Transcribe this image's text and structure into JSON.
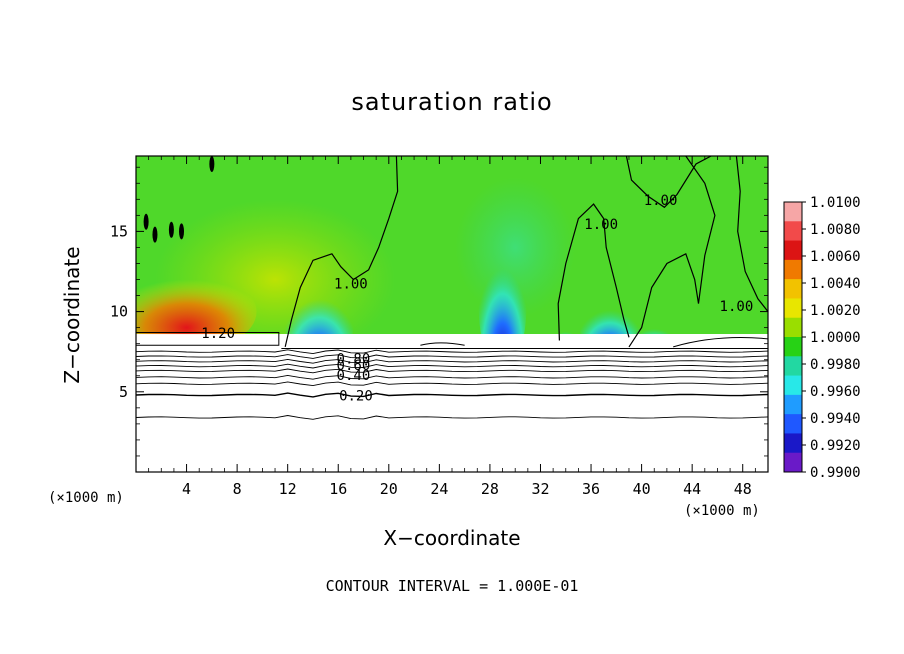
{
  "chart_data": {
    "type": "heatmap",
    "title": "saturation ratio",
    "xlabel": "X−coordinate",
    "ylabel": "Z−coordinate",
    "x_unit": "(×1000 m)",
    "xlim": [
      0,
      50
    ],
    "ylim": [
      0,
      19.7
    ],
    "x_ticks": [
      4,
      8,
      12,
      16,
      20,
      24,
      28,
      32,
      36,
      40,
      44,
      48
    ],
    "y_ticks": [
      5,
      10,
      15
    ],
    "colorbar": {
      "min": 0.99,
      "max": 1.01,
      "levels": [
        "1.0100",
        "1.0080",
        "1.0060",
        "1.0040",
        "1.0020",
        "1.0000",
        "0.9980",
        "0.9960",
        "0.9940",
        "0.9920",
        "0.9900"
      ],
      "colors": [
        "#f6a6a6",
        "#f24a4a",
        "#dc1414",
        "#f07a00",
        "#f2c200",
        "#e8e600",
        "#9ade00",
        "#27d215",
        "#22d8a2",
        "#28e8e8",
        "#1f9cff",
        "#1f58ff",
        "#1a18c8",
        "#6a1ac8"
      ]
    },
    "contour_labels": [
      {
        "text": "1.20",
        "x": 6.5,
        "z": 8.6
      },
      {
        "text": "0.80",
        "x": 17.2,
        "z": 7.0
      },
      {
        "text": "0.60",
        "x": 17.2,
        "z": 6.6
      },
      {
        "text": "0.40",
        "x": 17.2,
        "z": 6.0
      },
      {
        "text": "0.20",
        "x": 17.4,
        "z": 4.7
      },
      {
        "text": "1.00",
        "x": 17.0,
        "z": 11.7
      },
      {
        "text": "1.00",
        "x": 36.8,
        "z": 15.4
      },
      {
        "text": "1.00",
        "x": 41.5,
        "z": 16.9
      },
      {
        "text": "1.00",
        "x": 47.5,
        "z": 10.3
      }
    ],
    "contour_interval": "CONTOUR INTERVAL = 1.000E-01"
  }
}
